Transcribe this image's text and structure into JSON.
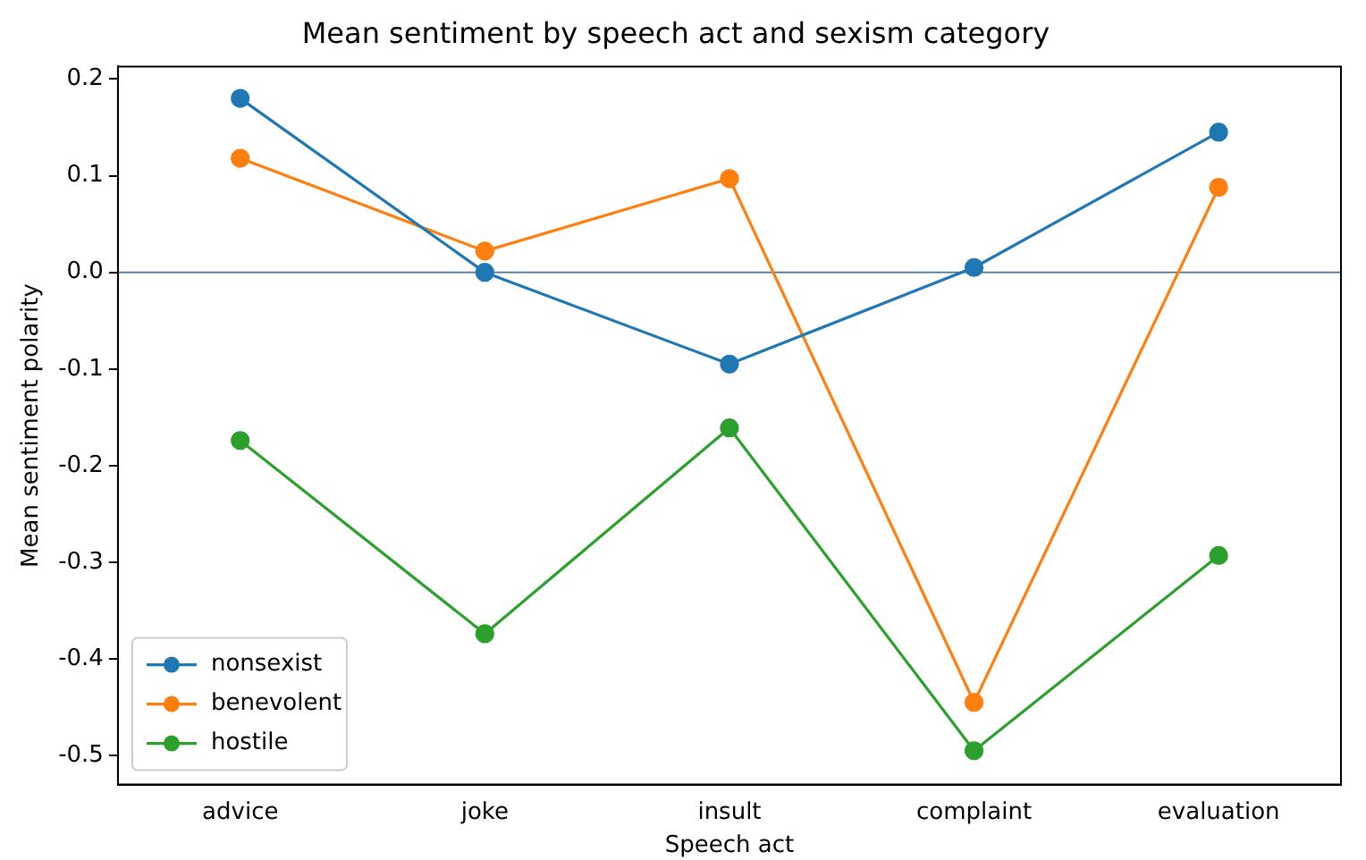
{
  "chart_data": {
    "type": "line",
    "title": "Mean sentiment by speech act and sexism category",
    "xlabel": "Speech act",
    "ylabel": "Mean sentiment polarity",
    "categories": [
      "advice",
      "joke",
      "insult",
      "complaint",
      "evaluation"
    ],
    "series": [
      {
        "name": "nonsexist",
        "color": "#1f77b4",
        "values": [
          0.18,
          0.0,
          -0.095,
          0.005,
          0.145
        ]
      },
      {
        "name": "benevolent",
        "color": "#ff7f0e",
        "values": [
          0.118,
          0.022,
          0.097,
          -0.445,
          0.088
        ]
      },
      {
        "name": "hostile",
        "color": "#2ca02c",
        "values": [
          -0.174,
          -0.374,
          -0.161,
          -0.495,
          -0.293
        ]
      }
    ],
    "ylim": [
      -0.53,
      0.213
    ],
    "yticks": [
      -0.5,
      -0.4,
      -0.3,
      -0.2,
      -0.1,
      {
        "value": 0,
        "label": "0.0"
      },
      0.1,
      0.2
    ],
    "ref_lines": [
      {
        "axis": "y",
        "value": 0,
        "color": "#4a6f8f"
      }
    ],
    "grid": false,
    "legend": "bottom left",
    "marker": "circle",
    "line_style": "solid"
  }
}
